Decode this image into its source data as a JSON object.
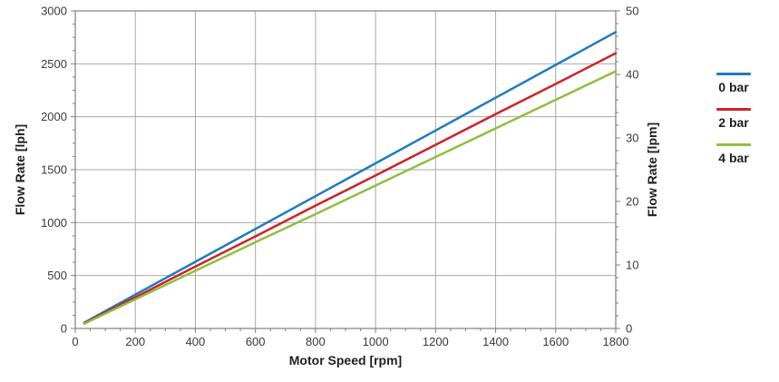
{
  "chart_data": {
    "type": "line",
    "title": "",
    "x": [
      30,
      200,
      400,
      600,
      800,
      1000,
      1200,
      1400,
      1600,
      1800
    ],
    "series": [
      {
        "name": "0 bar",
        "color": "#1f7ac2",
        "values": [
          55,
          320,
          630,
          940,
          1250,
          1560,
          1870,
          2180,
          2490,
          2800
        ]
      },
      {
        "name": "2 bar",
        "color": "#cc2428",
        "values": [
          50,
          295,
          585,
          870,
          1160,
          1445,
          1735,
          2025,
          2310,
          2600
        ]
      },
      {
        "name": "4 bar",
        "color": "#8fbe3f",
        "values": [
          45,
          275,
          545,
          815,
          1080,
          1350,
          1620,
          1890,
          2160,
          2430
        ]
      }
    ],
    "xlabel": "Motor Speed [rpm]",
    "ylabel_left": "Flow Rate [lph]",
    "ylabel_right": "Flow Rate [lpm]",
    "xlim": [
      0,
      1800
    ],
    "ylim_left": [
      0,
      3000
    ],
    "ylim_right": [
      0,
      50
    ],
    "x_ticks": [
      0,
      200,
      400,
      600,
      800,
      1000,
      1200,
      1400,
      1600,
      1800
    ],
    "y_left_ticks": [
      0,
      500,
      1000,
      1500,
      2000,
      2500,
      3000
    ],
    "y_right_ticks": [
      0,
      10,
      20,
      30,
      40,
      50
    ],
    "x_minor_step": 50,
    "y_left_minor_step": 125,
    "y_right_minor_step": 2,
    "grid": true,
    "legend_position": "right"
  },
  "axes": {
    "x_label": "Motor Speed [rpm]",
    "y_left_label": "Flow Rate [lph]",
    "y_right_label": "Flow Rate [lpm]"
  },
  "legend": {
    "items": [
      {
        "label": "0 bar",
        "color": "#1f7ac2"
      },
      {
        "label": "2 bar",
        "color": "#cc2428"
      },
      {
        "label": "4 bar",
        "color": "#8fbe3f"
      }
    ]
  },
  "colors": {
    "gridline": "#a9a9a9",
    "plot_border": "#7f7f7f",
    "tick": "#7f7f7f",
    "tick_text": "#3a3a3a",
    "background": "#ffffff"
  }
}
